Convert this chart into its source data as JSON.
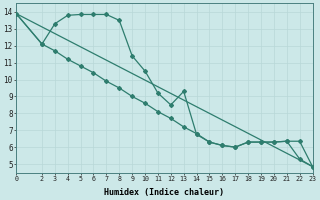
{
  "xlabel": "Humidex (Indice chaleur)",
  "bg_color": "#cce8e8",
  "line_color": "#2e7d6e",
  "xlim": [
    0,
    23
  ],
  "ylim": [
    4.5,
    14.5
  ],
  "xticks": [
    0,
    2,
    3,
    4,
    5,
    6,
    7,
    8,
    9,
    10,
    11,
    12,
    13,
    14,
    15,
    16,
    17,
    18,
    19,
    20,
    21,
    22,
    23
  ],
  "yticks": [
    5,
    6,
    7,
    8,
    9,
    10,
    11,
    12,
    13,
    14
  ],
  "series1_x": [
    0,
    2,
    3,
    4,
    5,
    6,
    7,
    8,
    9,
    10,
    11,
    12,
    13,
    14,
    15,
    16,
    17,
    18,
    19,
    20,
    21,
    22,
    23
  ],
  "series1_y": [
    13.9,
    12.1,
    13.3,
    13.8,
    13.85,
    13.85,
    13.85,
    13.5,
    11.4,
    10.5,
    9.2,
    8.5,
    9.3,
    6.75,
    6.3,
    6.1,
    6.0,
    6.3,
    6.3,
    6.3,
    6.35,
    5.3,
    4.85
  ],
  "series2_x": [
    0,
    2,
    3,
    4,
    5,
    6,
    7,
    8,
    9,
    10,
    11,
    12,
    13,
    14,
    15,
    16,
    17,
    18,
    19,
    20,
    21,
    22,
    23
  ],
  "series2_y": [
    13.9,
    12.1,
    11.7,
    11.2,
    10.8,
    10.4,
    9.9,
    9.5,
    9.0,
    8.6,
    8.1,
    7.7,
    7.2,
    6.8,
    6.3,
    6.1,
    6.0,
    6.3,
    6.3,
    6.3,
    6.35,
    6.35,
    4.85
  ],
  "series3_x": [
    0,
    23
  ],
  "series3_y": [
    13.9,
    4.85
  ]
}
